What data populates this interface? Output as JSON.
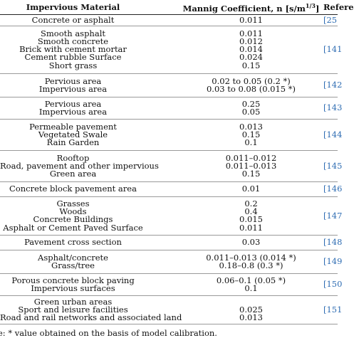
{
  "header": {
    "col1": "Impervious Material",
    "col2": "Mannig Coefficient, n [s/m",
    "col2_sup": "1/3",
    "col2_close": "]",
    "col3": "Refere"
  },
  "groups": [
    {
      "materials": [
        "Concrete or asphalt"
      ],
      "values": [
        "0.011"
      ],
      "ref": "[25"
    },
    {
      "materials": [
        "Smooth asphalt",
        "Smooth concrete",
        "Brick with cement mortar",
        "Cement rubble Surface",
        "Short grass"
      ],
      "values": [
        "0.011",
        "0.012",
        "0.014",
        "0.024",
        "0.15"
      ],
      "ref": "[141"
    },
    {
      "materials": [
        "Pervious area",
        "Impervious area"
      ],
      "values": [
        "0.02 to 0.05 (0.2 *)",
        "0.03 to 0.08 (0.015 *)"
      ],
      "ref": "[142"
    },
    {
      "materials": [
        "Pervious area",
        "Impervious area"
      ],
      "values": [
        "0.25",
        "0.05"
      ],
      "ref": "[143"
    },
    {
      "materials": [
        "Permeable pavement",
        "Vegetated Swale",
        "Rain Garden"
      ],
      "values": [
        "0.013",
        "0.15",
        "0.1"
      ],
      "ref": "[144"
    },
    {
      "materials": [
        "Rooftop",
        "Road, pavement and other impervious",
        "Green area"
      ],
      "values": [
        "0.011–0.012",
        "0.011–0.013",
        "0.15"
      ],
      "ref": "[145"
    },
    {
      "materials": [
        "Concrete block pavement area"
      ],
      "values": [
        "0.01"
      ],
      "ref": "[146"
    },
    {
      "materials": [
        "Grasses",
        "Woods",
        "Concrete Buildings",
        "Asphalt or Cement Paved Surface"
      ],
      "values": [
        "0.2",
        "0.4",
        "0.015",
        "0.011"
      ],
      "ref": "[147"
    },
    {
      "materials": [
        "Pavement cross section"
      ],
      "values": [
        "0.03"
      ],
      "ref": "[148"
    },
    {
      "materials": [
        "Asphalt/concrete",
        "Grass/tree"
      ],
      "values": [
        "0.011–0.013 (0.014 *)",
        "0.18–0.8 (0.3 *)"
      ],
      "ref": "[149"
    },
    {
      "materials": [
        "Porous concrete block paving",
        "Impervious surfaces"
      ],
      "values": [
        "0.06–0.1 (0.05 *)",
        "0.1"
      ],
      "ref": "[150"
    },
    {
      "materials": [
        "Green urban areas",
        "Sport and leisure facilities",
        "Road and rail networks and associated land"
      ],
      "values": [
        "",
        "0.025",
        "0.013"
      ],
      "ref": "[151"
    }
  ],
  "note": "e: * value obtained on the basis of model calibration."
}
